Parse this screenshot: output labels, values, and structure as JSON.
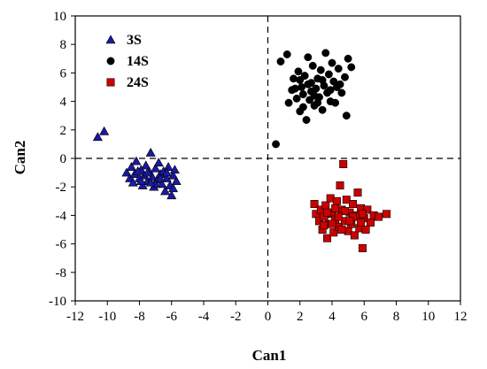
{
  "chart_data": {
    "type": "scatter",
    "xlabel": "Can1",
    "ylabel": "Can2",
    "xlim": [
      -12,
      12
    ],
    "ylim": [
      -10,
      10
    ],
    "xticks": [
      "-12",
      "-10",
      "-8",
      "-6",
      "-4",
      "-2",
      "0",
      "2",
      "4",
      "6",
      "8",
      "10",
      "12"
    ],
    "yticks": [
      "10",
      "8",
      "6",
      "4",
      "2",
      "0",
      "-2",
      "-4",
      "-6",
      "-8",
      "-10"
    ],
    "reference_lines": {
      "x": 0,
      "y": 0,
      "style": "dashed"
    },
    "legend_position": "top-left",
    "grid": false,
    "series": [
      {
        "name": "3S",
        "marker": "triangle",
        "color": "#1a1aa0",
        "points": [
          [
            -10.6,
            1.5
          ],
          [
            -10.2,
            1.9
          ],
          [
            -8.8,
            -1.0
          ],
          [
            -8.6,
            -1.4
          ],
          [
            -8.5,
            -0.6
          ],
          [
            -8.4,
            -1.7
          ],
          [
            -8.3,
            -1.1
          ],
          [
            -8.2,
            -0.2
          ],
          [
            -8.0,
            -1.4
          ],
          [
            -7.9,
            -0.8
          ],
          [
            -7.8,
            -1.9
          ],
          [
            -7.7,
            -1.2
          ],
          [
            -7.6,
            -0.5
          ],
          [
            -7.5,
            -1.6
          ],
          [
            -7.4,
            -0.9
          ],
          [
            -7.3,
            0.4
          ],
          [
            -7.2,
            -1.3
          ],
          [
            -7.1,
            -2.0
          ],
          [
            -7.0,
            -0.7
          ],
          [
            -6.9,
            -1.5
          ],
          [
            -6.8,
            -0.3
          ],
          [
            -6.7,
            -1.1
          ],
          [
            -6.6,
            -1.8
          ],
          [
            -6.5,
            -0.9
          ],
          [
            -6.4,
            -2.3
          ],
          [
            -6.3,
            -1.4
          ],
          [
            -6.2,
            -0.6
          ],
          [
            -6.1,
            -1.9
          ],
          [
            -6.0,
            -2.6
          ],
          [
            -5.9,
            -1.2
          ],
          [
            -5.8,
            -0.8
          ],
          [
            -5.7,
            -1.6
          ],
          [
            -7.9,
            -1.6
          ],
          [
            -7.5,
            -1.0
          ],
          [
            -7.0,
            -1.8
          ],
          [
            -6.7,
            -1.4
          ],
          [
            -8.1,
            -0.9
          ],
          [
            -6.3,
            -1.0
          ],
          [
            -5.9,
            -2.1
          ],
          [
            -7.3,
            -1.7
          ]
        ]
      },
      {
        "name": "14S",
        "marker": "circle",
        "color": "#000000",
        "points": [
          [
            0.5,
            1.0
          ],
          [
            0.8,
            6.8
          ],
          [
            1.2,
            7.3
          ],
          [
            1.3,
            3.9
          ],
          [
            1.5,
            4.8
          ],
          [
            1.6,
            5.6
          ],
          [
            1.8,
            4.2
          ],
          [
            1.9,
            6.1
          ],
          [
            2.0,
            3.3
          ],
          [
            2.1,
            5.0
          ],
          [
            2.2,
            4.5
          ],
          [
            2.3,
            5.8
          ],
          [
            2.4,
            2.7
          ],
          [
            2.5,
            7.1
          ],
          [
            2.6,
            4.1
          ],
          [
            2.7,
            5.3
          ],
          [
            2.8,
            6.5
          ],
          [
            2.9,
            3.7
          ],
          [
            3.0,
            4.9
          ],
          [
            3.1,
            5.6
          ],
          [
            3.2,
            4.3
          ],
          [
            3.3,
            6.2
          ],
          [
            3.4,
            3.4
          ],
          [
            3.5,
            5.1
          ],
          [
            3.6,
            7.4
          ],
          [
            3.7,
            4.6
          ],
          [
            3.8,
            5.9
          ],
          [
            3.9,
            4.0
          ],
          [
            4.0,
            6.7
          ],
          [
            4.1,
            5.4
          ],
          [
            4.2,
            3.9
          ],
          [
            4.3,
            5.0
          ],
          [
            4.4,
            6.3
          ],
          [
            4.6,
            4.6
          ],
          [
            4.8,
            5.7
          ],
          [
            4.9,
            3.0
          ],
          [
            5.0,
            7.0
          ],
          [
            5.2,
            6.4
          ],
          [
            1.7,
            4.9
          ],
          [
            2.2,
            3.6
          ],
          [
            2.9,
            4.4
          ],
          [
            3.4,
            5.5
          ],
          [
            3.9,
            4.8
          ],
          [
            2.5,
            5.2
          ],
          [
            3.1,
            3.9
          ],
          [
            2.0,
            5.5
          ],
          [
            4.5,
            5.2
          ],
          [
            2.7,
            4.7
          ]
        ]
      },
      {
        "name": "24S",
        "marker": "square",
        "color": "#cc0000",
        "points": [
          [
            2.9,
            -3.2
          ],
          [
            3.0,
            -3.9
          ],
          [
            3.2,
            -4.4
          ],
          [
            3.3,
            -3.6
          ],
          [
            3.4,
            -5.0
          ],
          [
            3.5,
            -4.1
          ],
          [
            3.6,
            -3.3
          ],
          [
            3.7,
            -5.6
          ],
          [
            3.8,
            -4.6
          ],
          [
            3.9,
            -2.8
          ],
          [
            4.0,
            -3.9
          ],
          [
            4.1,
            -5.2
          ],
          [
            4.2,
            -4.3
          ],
          [
            4.3,
            -3.0
          ],
          [
            4.4,
            -4.8
          ],
          [
            4.5,
            -1.9
          ],
          [
            4.6,
            -3.6
          ],
          [
            4.7,
            -0.4
          ],
          [
            4.8,
            -4.4
          ],
          [
            4.9,
            -2.9
          ],
          [
            5.0,
            -5.1
          ],
          [
            5.1,
            -3.8
          ],
          [
            5.2,
            -4.6
          ],
          [
            5.3,
            -3.2
          ],
          [
            5.4,
            -5.4
          ],
          [
            5.5,
            -4.0
          ],
          [
            5.6,
            -2.4
          ],
          [
            5.7,
            -4.9
          ],
          [
            5.8,
            -3.5
          ],
          [
            5.9,
            -6.3
          ],
          [
            6.0,
            -4.2
          ],
          [
            6.1,
            -5.0
          ],
          [
            6.2,
            -3.6
          ],
          [
            6.4,
            -4.5
          ],
          [
            6.6,
            -4.0
          ],
          [
            6.9,
            -4.1
          ],
          [
            7.4,
            -3.9
          ],
          [
            3.5,
            -4.7
          ],
          [
            4.2,
            -3.5
          ],
          [
            4.8,
            -3.7
          ],
          [
            5.3,
            -4.1
          ],
          [
            5.8,
            -4.5
          ],
          [
            4.0,
            -4.6
          ],
          [
            4.6,
            -5.0
          ],
          [
            5.1,
            -4.4
          ],
          [
            3.7,
            -3.8
          ],
          [
            5.9,
            -3.9
          ],
          [
            4.4,
            -4.1
          ]
        ]
      }
    ]
  }
}
